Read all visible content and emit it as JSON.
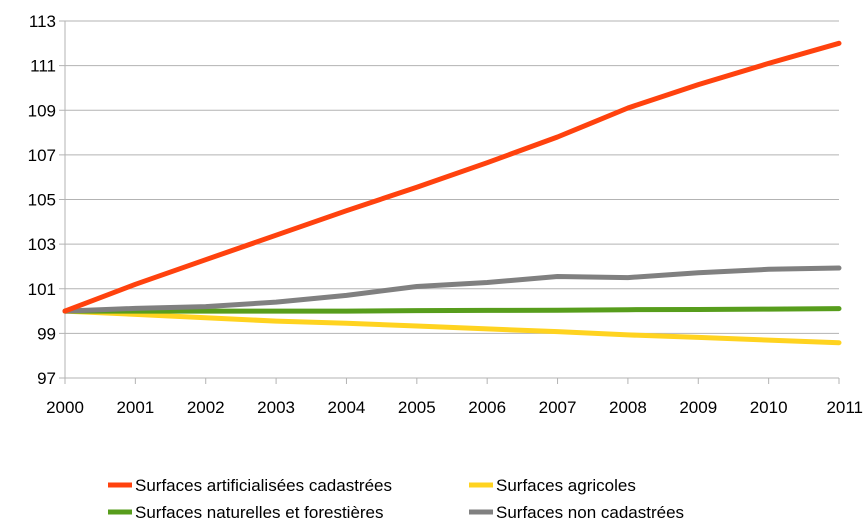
{
  "chart_data": {
    "type": "line",
    "title": "",
    "xlabel": "",
    "ylabel": "",
    "x": [
      2000,
      2001,
      2002,
      2003,
      2004,
      2005,
      2006,
      2007,
      2008,
      2009,
      2010,
      2011
    ],
    "ylim": [
      97,
      113
    ],
    "yticks": [
      97,
      99,
      101,
      103,
      105,
      107,
      109,
      111,
      113
    ],
    "grid": "horizontal",
    "legend_position": "bottom",
    "series": [
      {
        "name": "Surfaces artificialisées cadastrées",
        "color": "#ff420e",
        "values": [
          100.0,
          101.2,
          102.3,
          103.4,
          104.5,
          105.55,
          106.65,
          107.8,
          109.1,
          110.15,
          111.1,
          112.0
        ]
      },
      {
        "name": "Surfaces agricoles",
        "color": "#ffd320",
        "values": [
          100.0,
          99.85,
          99.7,
          99.55,
          99.45,
          99.33,
          99.2,
          99.08,
          98.93,
          98.82,
          98.7,
          98.58
        ]
      },
      {
        "name": "Surfaces naturelles et forestières",
        "color": "#579d1c",
        "values": [
          100.0,
          100.0,
          100.0,
          100.0,
          100.0,
          100.02,
          100.03,
          100.04,
          100.06,
          100.07,
          100.09,
          100.11
        ]
      },
      {
        "name": "Surfaces non cadastrées",
        "color": "#808080",
        "values": [
          100.0,
          100.12,
          100.2,
          100.4,
          100.7,
          101.1,
          101.28,
          101.55,
          101.5,
          101.72,
          101.87,
          101.93
        ]
      }
    ]
  }
}
